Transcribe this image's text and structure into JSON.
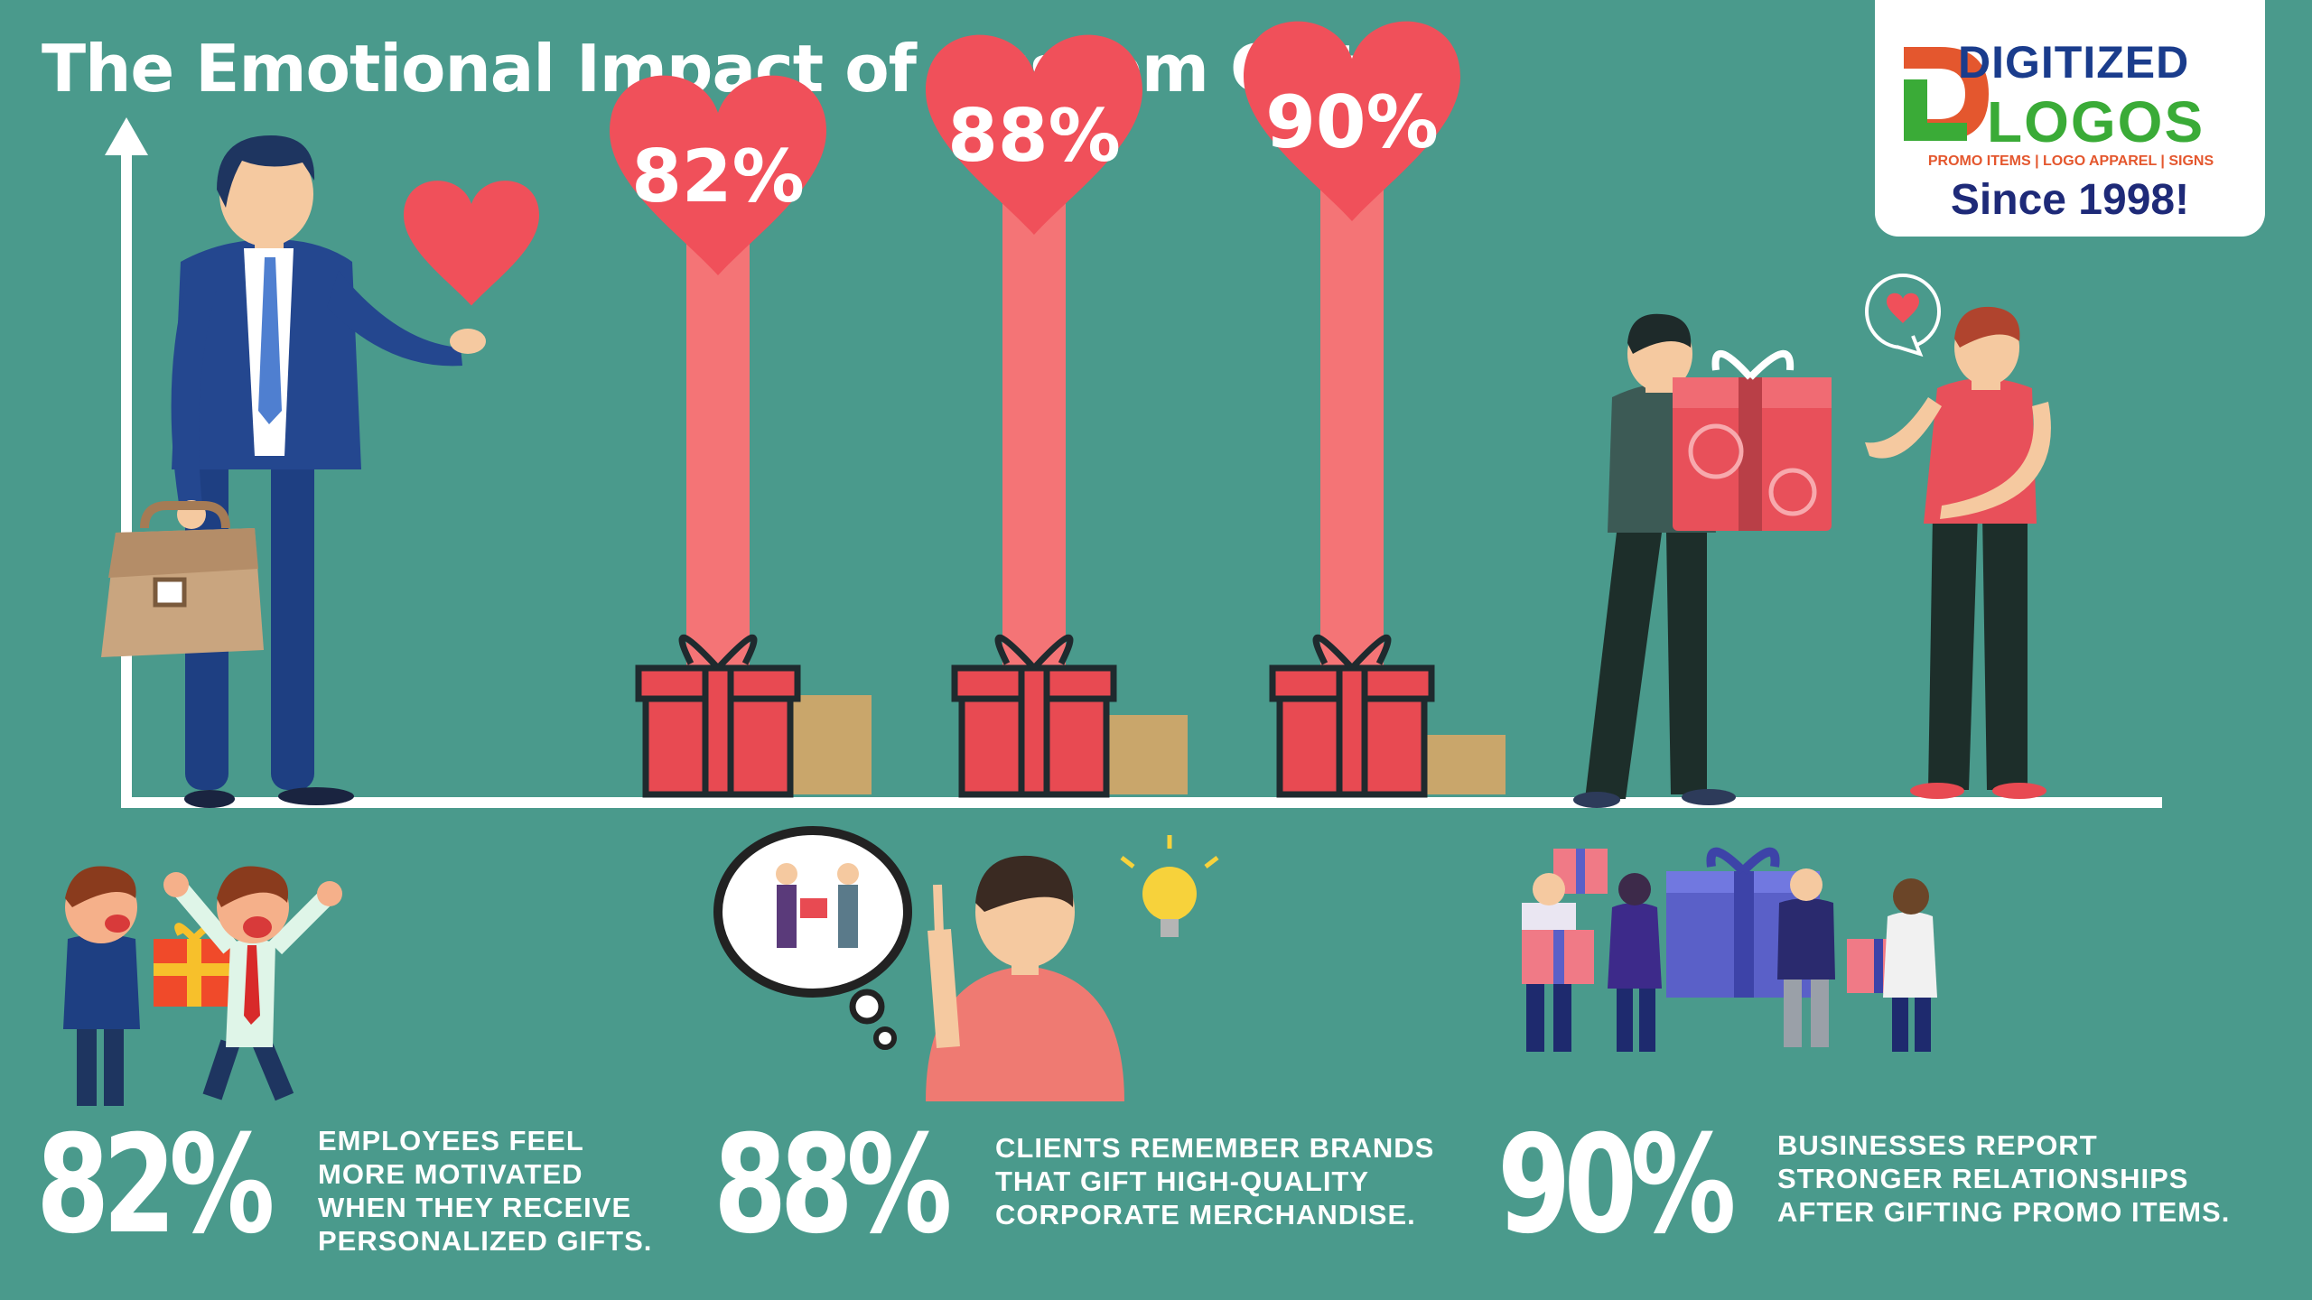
{
  "title": "The Emotional Impact of Custom Gifts",
  "logo": {
    "line1": "DIGITIZED",
    "line2": "LOGOS",
    "tagline": "PROMO ITEMS | LOGO APPAREL | SIGNS",
    "since": "Since 1998!"
  },
  "chart_data": {
    "type": "bar",
    "title": "The Emotional Impact of Custom Gifts",
    "categories": [
      "82%",
      "88%",
      "90%"
    ],
    "values": [
      82,
      88,
      90
    ],
    "labels": [
      "82%",
      "88%",
      "90%"
    ],
    "grid": false,
    "legend": "none"
  },
  "stats": [
    {
      "value": "82%",
      "text": "EMPLOYEES FEEL\nMORE MOTIVATED\nWHEN THEY RECEIVE\nPERSONALIZED GIFTS."
    },
    {
      "value": "88%",
      "text": "CLIENTS REMEMBER BRANDS\nTHAT GIFT HIGH-QUALITY\nCORPORATE MERCHANDISE."
    },
    {
      "value": "90%",
      "text": "BUSINESSES REPORT\nSTRONGER RELATIONSHIPS\nAFTER GIFTING PROMO ITEMS."
    }
  ],
  "colors": {
    "background": "#4a9a8c",
    "bar": "#f47476",
    "heart": "#f0505a",
    "gift": "#e84a52",
    "gift_outline": "#1f2a2e",
    "ground_box": "#c9a66b",
    "axis": "#ffffff",
    "brand_blue": "#1e2a78",
    "brand_green": "#3aab37",
    "brand_orange": "#e4572e"
  }
}
